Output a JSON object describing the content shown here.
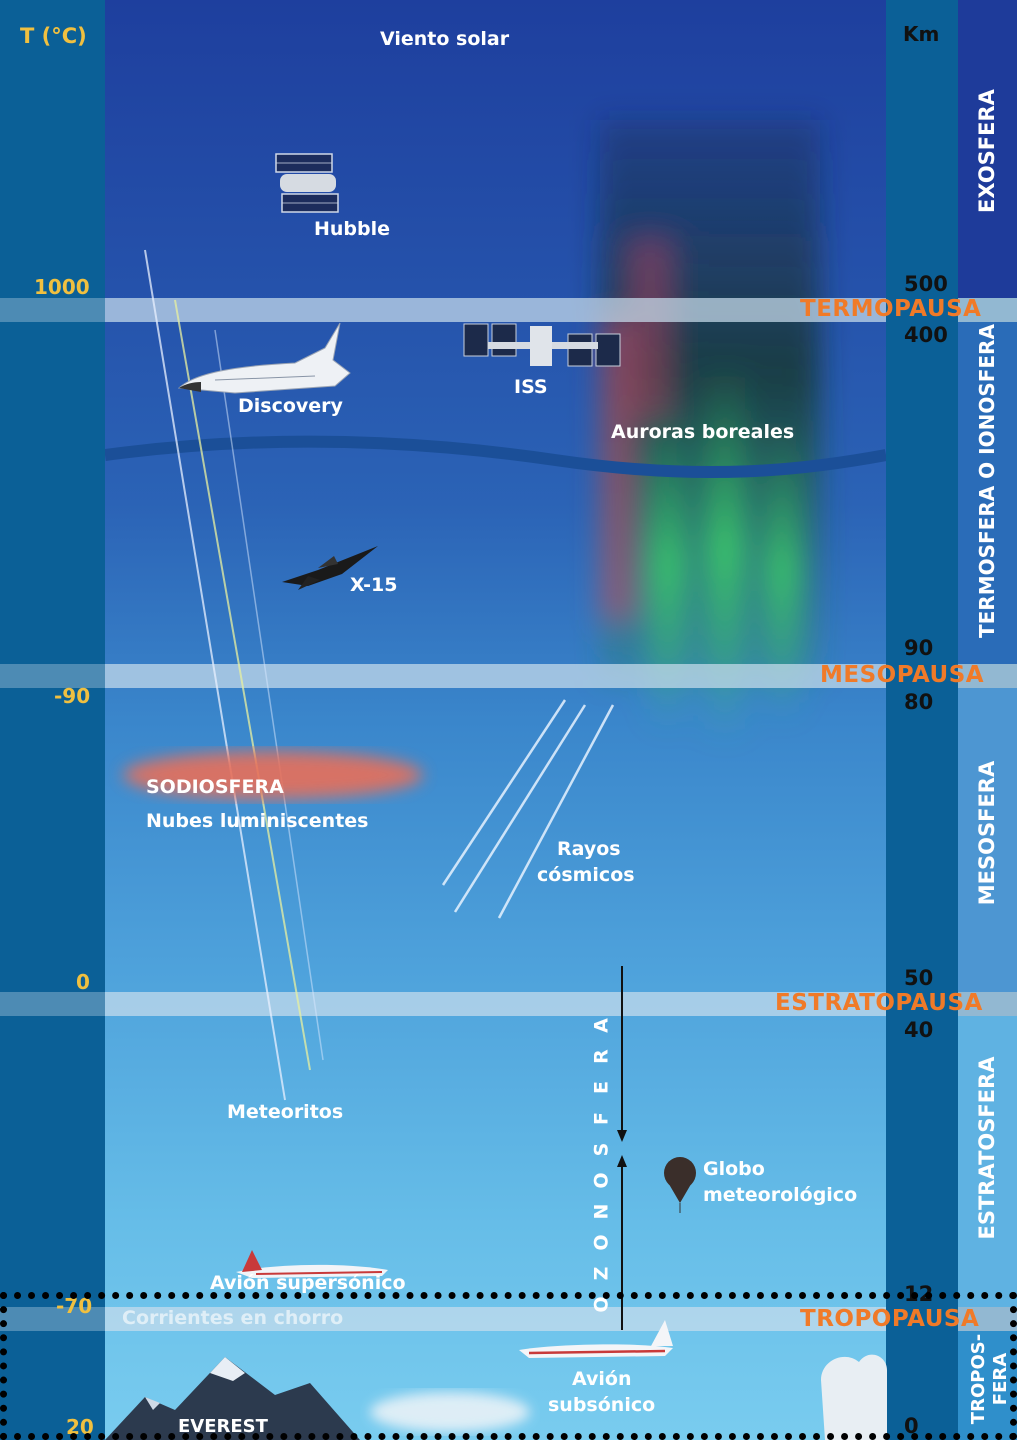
{
  "header": {
    "temp_unit": "T (°C)",
    "km_unit": "Km",
    "top_label": "Viento solar"
  },
  "temperatures": [
    "1000",
    "-90",
    "0",
    "-70",
    "20"
  ],
  "altitudes": [
    "500",
    "400",
    "90",
    "80",
    "50",
    "40",
    "12",
    "0"
  ],
  "layers": [
    "EXOSFERA",
    "TERMOSFERA O IONOSFERA",
    "MESOSFERA",
    "ESTRATOSFERA",
    "TROPOS-",
    "FERA"
  ],
  "pauses": [
    "TERMOPAUSA",
    "MESOPAUSA",
    "ESTRATOPAUSA",
    "TROPOPAUSA"
  ],
  "objects": {
    "hubble": "Hubble",
    "discovery": "Discovery",
    "iss": "ISS",
    "auroras": "Auroras boreales",
    "x15": "X-15",
    "sodiosfera": "SODIOSFERA",
    "nubes": "Nubes luminiscentes",
    "rayos_1": "Rayos",
    "rayos_2": "cósmicos",
    "meteoritos": "Meteoritos",
    "globo_1": "Globo",
    "globo_2": "meteorológico",
    "supersonico": "Avión supersónico",
    "corrientes": "Corrientes en chorro",
    "subsonico_1": "Avión",
    "subsonico_2": "subsónico",
    "everest": "EVEREST"
  },
  "ozonosfera": "OZONOSFERA",
  "colors": {
    "temperature": "#f0c040",
    "pause": "#f07a28",
    "column": "#0b6097"
  }
}
